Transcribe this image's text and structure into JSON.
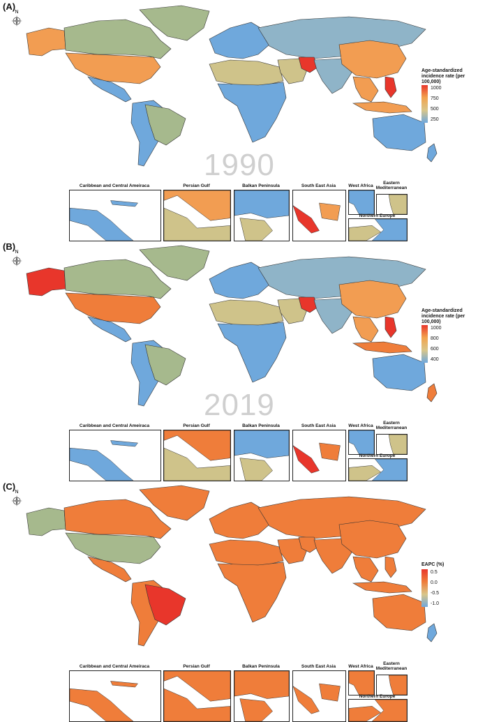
{
  "colors": {
    "ocean": "#ffffff",
    "blue": "#6fa8dc",
    "steel": "#8fb4c8",
    "green": "#a6b98d",
    "khaki": "#cfc38a",
    "orange": "#f29d52",
    "deep_orange": "#ef7d3a",
    "red": "#e8362b",
    "border": "#333333"
  },
  "compass_letter": "N",
  "panels": [
    {
      "label": "(A)",
      "year": "1990",
      "legend": {
        "title": "Age-standardized incidence rate (per 100,000)",
        "ticks": [
          "1000",
          "750",
          "500",
          "250"
        ],
        "gradient": [
          "#e8362b",
          "#f2a34e",
          "#d9c68a",
          "#6fa8dc"
        ]
      },
      "regions": {
        "alaska": "orange",
        "canada": "green",
        "greenland": "green",
        "usa": "orange",
        "central_america": "blue",
        "south_america": "blue",
        "brazil": "green",
        "europe": "blue",
        "russia": "steel",
        "north_africa": "khaki",
        "sub_saharan_africa": "blue",
        "middle_east": "khaki",
        "iran": "red",
        "south_asia": "steel",
        "china": "orange",
        "southeast_asia": "orange",
        "philippines": "red",
        "indonesia": "orange",
        "australia": "blue",
        "new_zealand": "blue"
      }
    },
    {
      "label": "(B)",
      "year": "2019",
      "legend": {
        "title": "Age-standardized incidence rate (per 100,000)",
        "ticks": [
          "1000",
          "800",
          "600",
          "400"
        ],
        "gradient": [
          "#e8362b",
          "#f2a34e",
          "#d9c68a",
          "#6fa8dc"
        ]
      },
      "regions": {
        "alaska": "red",
        "canada": "green",
        "greenland": "green",
        "usa": "deep_orange",
        "central_america": "blue",
        "south_america": "blue",
        "brazil": "green",
        "europe": "blue",
        "russia": "steel",
        "north_africa": "khaki",
        "sub_saharan_africa": "blue",
        "middle_east": "khaki",
        "iran": "red",
        "south_asia": "steel",
        "china": "orange",
        "southeast_asia": "orange",
        "philippines": "red",
        "indonesia": "deep_orange",
        "australia": "blue",
        "new_zealand": "deep_orange"
      }
    },
    {
      "label": "(C)",
      "year": "",
      "legend": {
        "title": "EAPC (%)",
        "ticks": [
          "0.5",
          "0.0",
          "-0.5",
          "-1.0"
        ],
        "gradient": [
          "#e8362b",
          "#ef7d3a",
          "#d9c68a",
          "#6fa8dc"
        ]
      },
      "regions": {
        "alaska": "green",
        "canada": "deep_orange",
        "greenland": "deep_orange",
        "usa": "green",
        "central_america": "deep_orange",
        "south_america": "deep_orange",
        "brazil": "red",
        "europe": "deep_orange",
        "russia": "deep_orange",
        "north_africa": "deep_orange",
        "sub_saharan_africa": "deep_orange",
        "middle_east": "deep_orange",
        "iran": "deep_orange",
        "south_asia": "deep_orange",
        "china": "deep_orange",
        "southeast_asia": "deep_orange",
        "philippines": "deep_orange",
        "indonesia": "deep_orange",
        "australia": "deep_orange",
        "new_zealand": "blue"
      }
    }
  ],
  "insets": {
    "caribbean": "Caribbean and Central Ameiraca",
    "persian_gulf": "Persian Gulf",
    "balkan": "Balkan Peninsula",
    "south_east_asia": "South East Asia",
    "west_africa": "West Africa",
    "eastern_med": "Eastern Mediterranean",
    "northern_europe": "Northern Europe"
  },
  "inset_fills": [
    {
      "caribbean": "blue",
      "persian_gulf": "orange",
      "gulf_land": "khaki",
      "balkan_a": "blue",
      "balkan_b": "khaki",
      "sea_a": "red",
      "sea_b": "orange",
      "west_africa": "blue",
      "eastern_med": "khaki",
      "northern_europe_a": "khaki",
      "northern_europe_b": "blue"
    },
    {
      "caribbean": "blue",
      "persian_gulf": "deep_orange",
      "gulf_land": "khaki",
      "balkan_a": "blue",
      "balkan_b": "khaki",
      "sea_a": "red",
      "sea_b": "deep_orange",
      "west_africa": "blue",
      "eastern_med": "khaki",
      "northern_europe_a": "khaki",
      "northern_europe_b": "blue"
    },
    {
      "caribbean": "deep_orange",
      "persian_gulf": "deep_orange",
      "gulf_land": "deep_orange",
      "balkan_a": "deep_orange",
      "balkan_b": "deep_orange",
      "sea_a": "deep_orange",
      "sea_b": "deep_orange",
      "west_africa": "deep_orange",
      "eastern_med": "deep_orange",
      "northern_europe_a": "deep_orange",
      "northern_europe_b": "deep_orange"
    }
  ]
}
